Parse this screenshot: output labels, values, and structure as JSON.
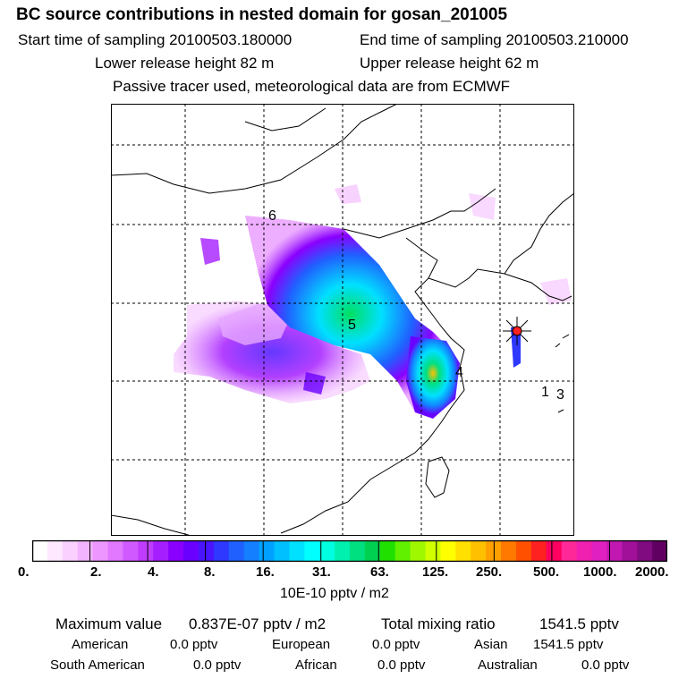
{
  "header": {
    "title": "BC  source contributions in nested domain for gosan_201005",
    "start_sampling": "Start time of sampling 20100503.180000",
    "end_sampling": "End time of sampling 20100503.210000",
    "lower_release": "Lower release height   82 m",
    "upper_release": "Upper release height   62 m",
    "tracer_note": "Passive tracer used, meteorological data are from ECMWF"
  },
  "map": {
    "labels": [
      "1",
      "3",
      "4",
      "5",
      "6"
    ]
  },
  "colorbar": {
    "ticks": [
      "0.",
      "2.",
      "4.",
      "8.",
      "16.",
      "31.",
      "63.",
      "125.",
      "250.",
      "500.",
      "1000.",
      "2000."
    ],
    "colors": [
      "#ffffff",
      "#fde8ff",
      "#f9d0ff",
      "#f3b4ff",
      "#ee96ff",
      "#e178ff",
      "#d05aff",
      "#bf3cff",
      "#a51eff",
      "#8a00ff",
      "#6a00ff",
      "#4a14ff",
      "#2e38ff",
      "#2060ff",
      "#1480ff",
      "#00a0ff",
      "#00c0ff",
      "#00e0ff",
      "#00ffff",
      "#00ffe0",
      "#00f0b0",
      "#00e080",
      "#00d050",
      "#20e000",
      "#60f000",
      "#a0f800",
      "#d0ff00",
      "#ffff00",
      "#ffe000",
      "#ffc000",
      "#ffa000",
      "#ff7800",
      "#ff5000",
      "#ff2020",
      "#ff0060",
      "#ff2898",
      "#f020b0",
      "#e020c0",
      "#c018b0",
      "#a01098",
      "#800a80",
      "#600060"
    ],
    "unit": "10E-10 pptv / m2"
  },
  "stats": {
    "max_label": "Maximum value",
    "max_value": "0.837E-07 pptv / m2",
    "total_label": "Total mixing ratio",
    "total_value": "1541.5 pptv",
    "regions": [
      {
        "name": "American",
        "value": "0.0 pptv"
      },
      {
        "name": "European",
        "value": "0.0 pptv"
      },
      {
        "name": "Asian",
        "value": "1541.5 pptv"
      },
      {
        "name": "South American",
        "value": "0.0 pptv"
      },
      {
        "name": "African",
        "value": "0.0 pptv"
      },
      {
        "name": "Australian",
        "value": "0.0 pptv"
      }
    ]
  }
}
